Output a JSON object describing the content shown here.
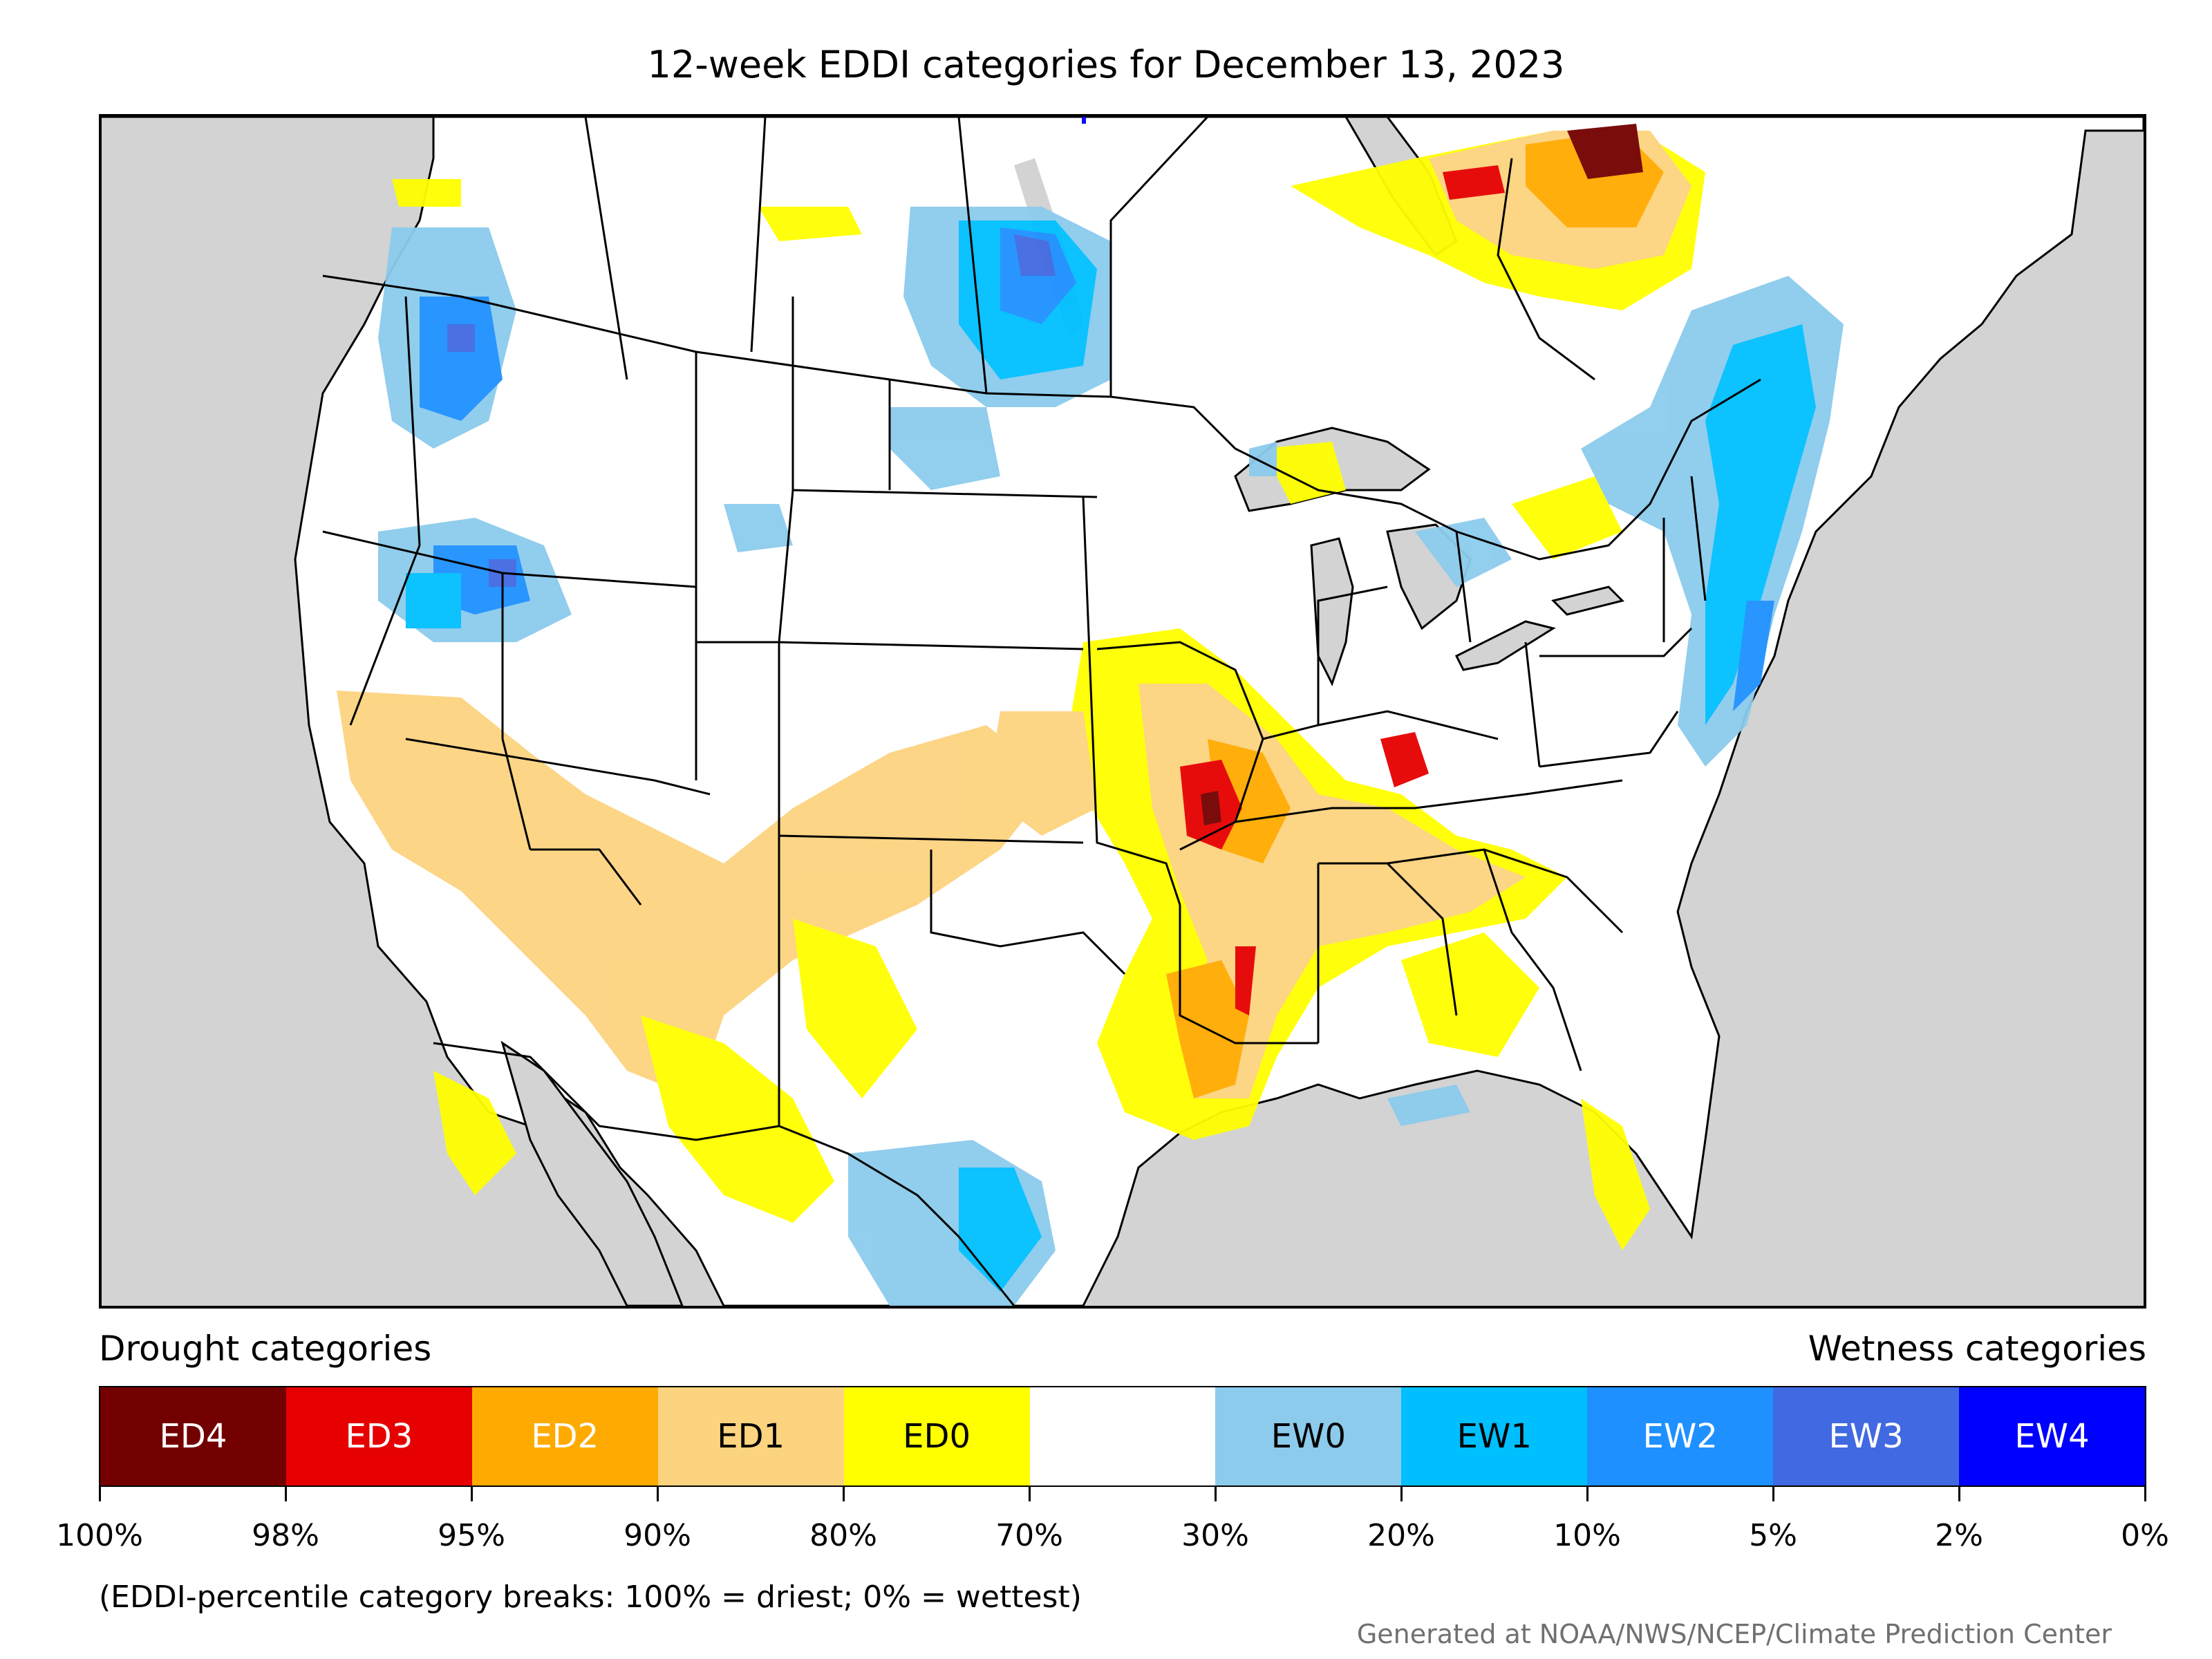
{
  "title": "12-week EDDI categories for December 13, 2023",
  "legend": {
    "drought_label": "Drought categories",
    "wetness_label": "Wetness categories",
    "categories": [
      {
        "label": "ED4",
        "color": "#730000",
        "text_color": "#ffffff"
      },
      {
        "label": "ED3",
        "color": "#e60000",
        "text_color": "#ffffff"
      },
      {
        "label": "ED2",
        "color": "#ffaa00",
        "text_color": "#ffffff"
      },
      {
        "label": "ED1",
        "color": "#fcd37f",
        "text_color": "#000000"
      },
      {
        "label": "ED0",
        "color": "#ffff00",
        "text_color": "#000000"
      },
      {
        "label": "",
        "color": "#ffffff",
        "text_color": "#000000"
      },
      {
        "label": "EW0",
        "color": "#8ccbec",
        "text_color": "#000000"
      },
      {
        "label": "EW1",
        "color": "#00bfff",
        "text_color": "#000000"
      },
      {
        "label": "EW2",
        "color": "#1e90ff",
        "text_color": "#ffffff"
      },
      {
        "label": "EW3",
        "color": "#4169e1",
        "text_color": "#ffffff"
      },
      {
        "label": "EW4",
        "color": "#0000ff",
        "text_color": "#ffffff"
      }
    ],
    "breaks": [
      "100%",
      "98%",
      "95%",
      "90%",
      "80%",
      "70%",
      "30%",
      "20%",
      "10%",
      "5%",
      "2%",
      "0%"
    ]
  },
  "note": "(EDDI-percentile category breaks: 100% = driest; 0% = wettest)",
  "credit": "Generated at NOAA/NWS/NCEP/Climate Prediction Center",
  "colors": {
    "ocean": "#d3d3d3",
    "land": "#ffffff",
    "boundary": "#000000"
  }
}
